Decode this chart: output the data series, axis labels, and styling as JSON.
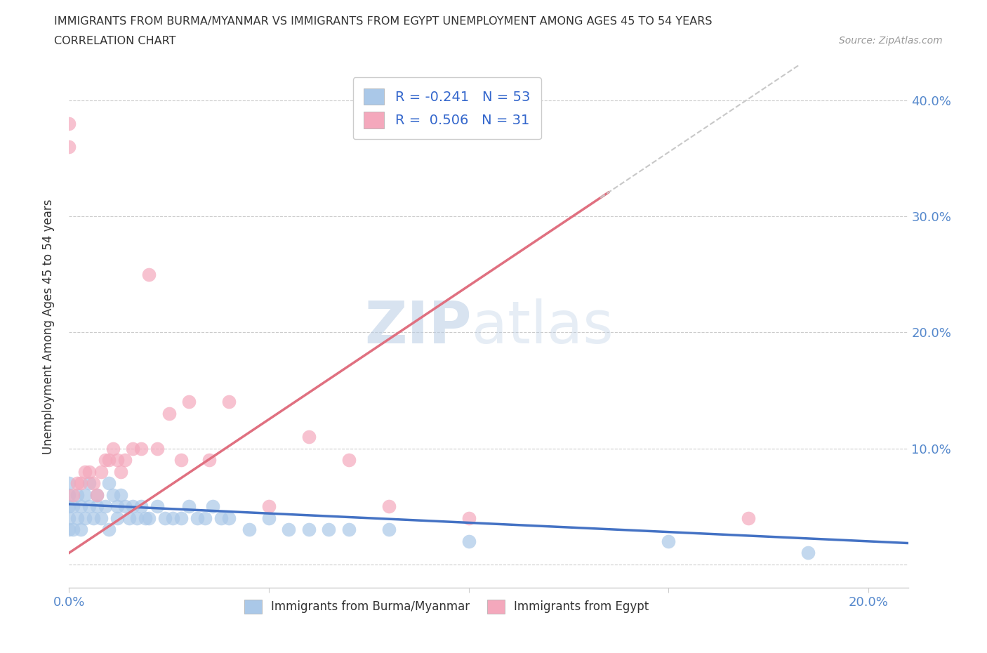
{
  "title_line1": "IMMIGRANTS FROM BURMA/MYANMAR VS IMMIGRANTS FROM EGYPT UNEMPLOYMENT AMONG AGES 45 TO 54 YEARS",
  "title_line2": "CORRELATION CHART",
  "source_text": "Source: ZipAtlas.com",
  "ylabel": "Unemployment Among Ages 45 to 54 years",
  "xlim": [
    0.0,
    0.21
  ],
  "ylim": [
    -0.02,
    0.43
  ],
  "x_ticks": [
    0.0,
    0.05,
    0.1,
    0.15,
    0.2
  ],
  "x_tick_labels": [
    "0.0%",
    "",
    "",
    "",
    "20.0%"
  ],
  "y_ticks": [
    0.0,
    0.1,
    0.2,
    0.3,
    0.4
  ],
  "y_tick_labels": [
    "",
    "10.0%",
    "20.0%",
    "30.0%",
    "40.0%"
  ],
  "legend_r1": "R = -0.241   N = 53",
  "legend_r2": "R =  0.506   N = 31",
  "color_burma": "#aac8e8",
  "color_egypt": "#f4a8bc",
  "trendline_burma": "#4472c4",
  "trendline_egypt": "#e07080",
  "trendline_dashed_color": "#c8c8c8",
  "watermark": "ZIPatlas",
  "burma_slope": -0.16,
  "burma_intercept": 0.052,
  "egypt_slope": 2.3,
  "egypt_intercept": 0.01,
  "burma_x": [
    0.0,
    0.0,
    0.0,
    0.0,
    0.0,
    0.001,
    0.001,
    0.002,
    0.002,
    0.003,
    0.003,
    0.004,
    0.004,
    0.005,
    0.005,
    0.006,
    0.007,
    0.007,
    0.008,
    0.009,
    0.01,
    0.01,
    0.011,
    0.012,
    0.012,
    0.013,
    0.014,
    0.015,
    0.016,
    0.017,
    0.018,
    0.019,
    0.02,
    0.022,
    0.024,
    0.026,
    0.028,
    0.03,
    0.032,
    0.034,
    0.036,
    0.038,
    0.04,
    0.045,
    0.05,
    0.055,
    0.06,
    0.065,
    0.07,
    0.08,
    0.1,
    0.15,
    0.185
  ],
  "burma_y": [
    0.05,
    0.04,
    0.03,
    0.06,
    0.07,
    0.05,
    0.03,
    0.04,
    0.06,
    0.05,
    0.03,
    0.06,
    0.04,
    0.05,
    0.07,
    0.04,
    0.06,
    0.05,
    0.04,
    0.05,
    0.07,
    0.03,
    0.06,
    0.05,
    0.04,
    0.06,
    0.05,
    0.04,
    0.05,
    0.04,
    0.05,
    0.04,
    0.04,
    0.05,
    0.04,
    0.04,
    0.04,
    0.05,
    0.04,
    0.04,
    0.05,
    0.04,
    0.04,
    0.03,
    0.04,
    0.03,
    0.03,
    0.03,
    0.03,
    0.03,
    0.02,
    0.02,
    0.01
  ],
  "egypt_x": [
    0.0,
    0.0,
    0.001,
    0.002,
    0.003,
    0.004,
    0.005,
    0.006,
    0.007,
    0.008,
    0.009,
    0.01,
    0.011,
    0.012,
    0.013,
    0.014,
    0.016,
    0.018,
    0.02,
    0.022,
    0.025,
    0.028,
    0.03,
    0.035,
    0.04,
    0.05,
    0.06,
    0.07,
    0.08,
    0.1,
    0.17
  ],
  "egypt_y": [
    0.38,
    0.36,
    0.06,
    0.07,
    0.07,
    0.08,
    0.08,
    0.07,
    0.06,
    0.08,
    0.09,
    0.09,
    0.1,
    0.09,
    0.08,
    0.09,
    0.1,
    0.1,
    0.25,
    0.1,
    0.13,
    0.09,
    0.14,
    0.09,
    0.14,
    0.05,
    0.11,
    0.09,
    0.05,
    0.04,
    0.04
  ]
}
